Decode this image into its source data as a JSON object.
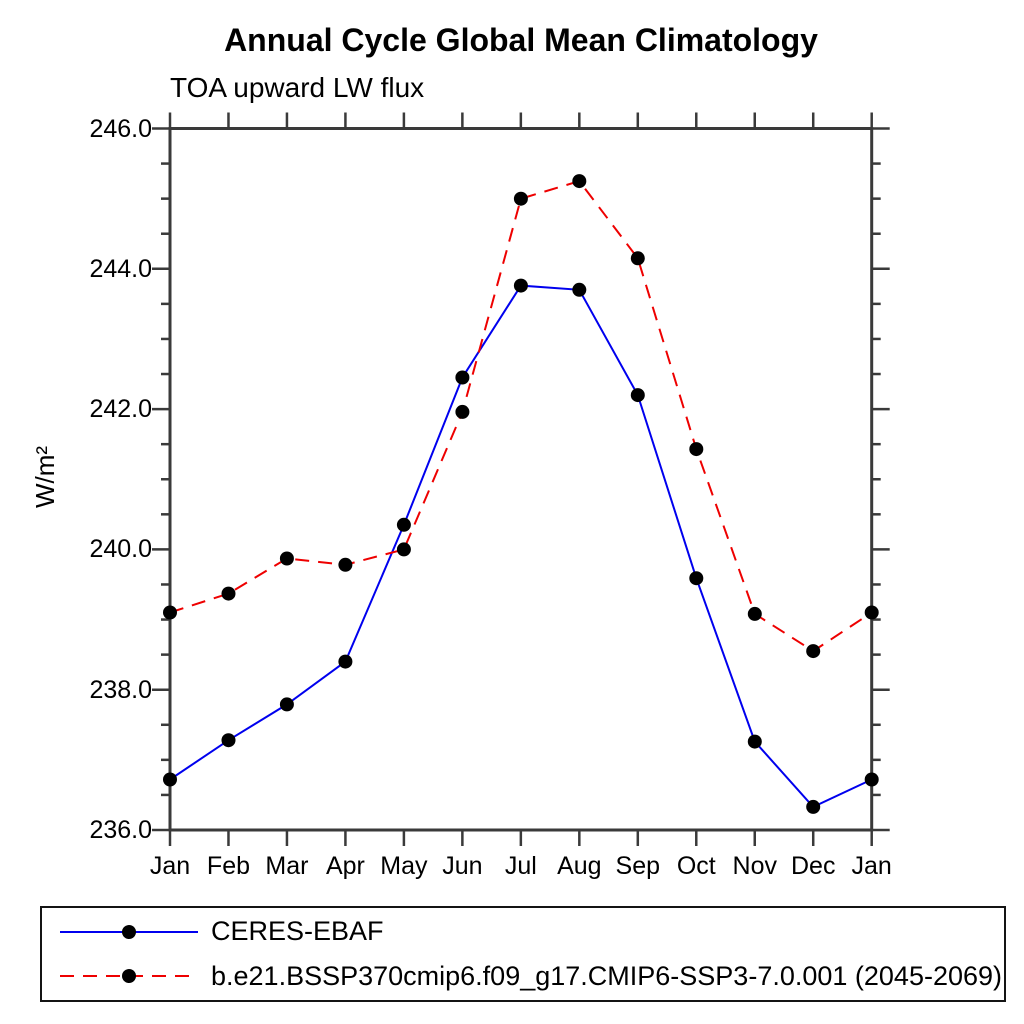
{
  "chart_data": {
    "type": "line",
    "title": "Annual Cycle Global Mean Climatology",
    "subtitle": "TOA upward LW flux",
    "ylabel": "W/m²",
    "xlabel": "",
    "ylim": [
      236.0,
      246.0
    ],
    "ytick_interval_major": 2.0,
    "ytick_interval_minor": 0.5,
    "ytick_values": [
      246,
      244,
      242,
      240,
      238,
      236
    ],
    "ytick_labels": [
      "246.0",
      "244.0",
      "242.0",
      "240.0",
      "238.0",
      "236.0"
    ],
    "categories": [
      "Jan",
      "Feb",
      "Mar",
      "Apr",
      "May",
      "Jun",
      "Jul",
      "Aug",
      "Sep",
      "Oct",
      "Nov",
      "Dec",
      "Jan"
    ],
    "grid": false,
    "legend_position": "bottom-box",
    "axis_color": "#3a3a3a",
    "marker": "filled-circle",
    "marker_color": "#000000",
    "series": [
      {
        "name": "CERES-EBAF",
        "color": "#0000ee",
        "line_style": "solid",
        "values": [
          236.72,
          237.28,
          237.79,
          238.4,
          240.35,
          242.45,
          243.76,
          243.7,
          242.2,
          239.59,
          237.26,
          236.33,
          236.72
        ]
      },
      {
        "name": "b.e21.BSSP370cmip6.f09_g17.CMIP6-SSP3-7.0.001 (2045-2069)",
        "color": "#ee0000",
        "line_style": "dashed",
        "values": [
          239.1,
          239.37,
          239.87,
          239.78,
          240.0,
          241.96,
          245.0,
          245.25,
          244.15,
          241.43,
          239.08,
          238.55,
          239.1
        ]
      }
    ]
  }
}
